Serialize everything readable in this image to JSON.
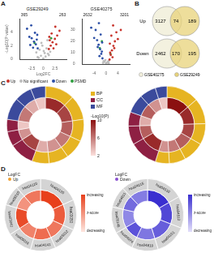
{
  "panel_labels": [
    "A",
    "B",
    "C",
    "D"
  ],
  "chart_data": [
    {
      "type": "scatter",
      "title": "GSE29249",
      "x_label": "Log2FC",
      "y_label": "-Log10(P value)",
      "xlim": [
        -5,
        5
      ],
      "xticks": [
        -2.5,
        0,
        2.5
      ],
      "ylim": [
        0,
        6
      ],
      "yticks": [
        0,
        2,
        4
      ],
      "grid": false,
      "count_labels": {
        "left": "365",
        "right": "263"
      },
      "series": [
        {
          "name": "Up",
          "color": "#c8342c",
          "x": [
            1.2,
            1.6,
            2,
            2.5,
            3,
            1.4,
            1.8,
            2.2,
            3.5,
            2.8,
            1.3,
            2.6
          ],
          "y": [
            1.5,
            2,
            2.5,
            3,
            3.5,
            2.8,
            3.8,
            1.6,
            4.2,
            2.2,
            3.3,
            4.8
          ]
        },
        {
          "name": "No significant",
          "color": "#bdbdbd",
          "x": [
            -1,
            -0.5,
            0,
            0.5,
            1,
            -1.5,
            1.5,
            -0.8,
            0.3,
            0.7,
            -0.2,
            1.2,
            -1.2,
            0.1,
            -0.4,
            0.9
          ],
          "y": [
            0.2,
            0.5,
            0.1,
            0.4,
            0.8,
            1,
            1.1,
            1.4,
            0.9,
            1.6,
            2,
            0.6,
            0.3,
            1.2,
            2.4,
            2.8
          ]
        },
        {
          "name": "Down",
          "color": "#2c4fa6",
          "x": [
            -1.2,
            -1.6,
            -2,
            -2.5,
            -3,
            -1.4,
            -1.8,
            -2.2,
            -3.5,
            -2.8,
            -1.3,
            -2.6
          ],
          "y": [
            1.6,
            2.2,
            2.6,
            3.1,
            3.3,
            2.9,
            3.9,
            1.7,
            4.5,
            2.1,
            3.6,
            5
          ]
        },
        {
          "name": "PSMD",
          "color": "#2e9e3e",
          "x": [
            1.7,
            -1.9
          ],
          "y": [
            3.1,
            2.4
          ]
        }
      ]
    },
    {
      "type": "scatter",
      "title": "GSE40275",
      "xlim": [
        -8,
        8
      ],
      "xticks": [
        -4,
        0,
        4
      ],
      "ylim": [
        0,
        40
      ],
      "yticks": [
        0,
        10,
        20,
        30
      ],
      "grid": false,
      "count_labels": {
        "left": "2632",
        "right": "3201"
      },
      "series": [
        {
          "name": "Up",
          "color": "#c8342c",
          "x": [
            1.2,
            1.6,
            2,
            2.5,
            3,
            1.4,
            1.8,
            2.2,
            3.5,
            2.8,
            4,
            5,
            1.3,
            2.4
          ],
          "y": [
            4,
            8,
            12,
            16,
            20,
            10,
            25,
            6,
            28,
            14,
            22,
            30,
            18,
            34
          ]
        },
        {
          "name": "No significant",
          "color": "#bdbdbd",
          "x": [
            -1,
            -0.5,
            0,
            0.5,
            1,
            -0.8,
            0.3,
            0.7,
            -0.2,
            0.9
          ],
          "y": [
            1,
            2,
            0.5,
            1.5,
            3,
            2.5,
            1.2,
            2.2,
            3.5,
            0.8
          ]
        },
        {
          "name": "Down",
          "color": "#2c4fa6",
          "x": [
            -1.2,
            -1.6,
            -2,
            -2.5,
            -3,
            -1.4,
            -1.8,
            -2.2,
            -3.5,
            -2.8,
            -4,
            -5,
            -1.3,
            -2.4
          ],
          "y": [
            5,
            9,
            13,
            17,
            21,
            11,
            26,
            7,
            30,
            15,
            23,
            32,
            19,
            36
          ]
        },
        {
          "name": "PSMD",
          "color": "#2e9e3e",
          "x": [
            1.5,
            -2.1,
            -1.4
          ],
          "y": [
            9,
            14,
            20
          ]
        }
      ]
    }
  ],
  "venn": {
    "legend": [
      {
        "name": "GSE40275",
        "color": "#f2efdc"
      },
      {
        "name": "GSE29249",
        "color": "#e8d37a"
      }
    ],
    "sets": [
      {
        "title": "Up",
        "left": 3127,
        "both": 74,
        "right": 189
      },
      {
        "title": "Down",
        "left": 2462,
        "both": 170,
        "right": 195
      }
    ]
  },
  "go_circles": {
    "ontology_colors": {
      "BP": "#e6b422",
      "CC": "#8e2043",
      "MF": "#3b4a9c"
    },
    "color_scale": {
      "label": "-Log10(P)",
      "range": [
        2,
        10
      ],
      "ticks": [
        2,
        6,
        10
      ],
      "colors": [
        "#fbe0dc",
        "#8b1010"
      ]
    },
    "plots": [
      {
        "type": "doughnut",
        "ontology": [
          "BP",
          "BP",
          "BP",
          "BP",
          "BP",
          "BP",
          "CC",
          "CC",
          "CC",
          "MF",
          "MF",
          "MF"
        ],
        "values": [
          12,
          10,
          9,
          8,
          8,
          7,
          10,
          6,
          5,
          9,
          7,
          6
        ],
        "neglog10p": [
          9,
          8,
          7,
          6,
          5,
          4,
          8,
          5,
          3,
          6,
          4,
          3
        ]
      },
      {
        "type": "doughnut",
        "ontology": [
          "BP",
          "BP",
          "BP",
          "BP",
          "BP",
          "BP",
          "CC",
          "CC",
          "CC",
          "MF",
          "MF",
          "MF"
        ],
        "values": [
          14,
          11,
          9,
          9,
          7,
          6,
          12,
          8,
          6,
          8,
          7,
          5
        ],
        "neglog10p": [
          10,
          9,
          8,
          7,
          6,
          5,
          9,
          7,
          4,
          7,
          5,
          3
        ]
      }
    ]
  },
  "kegg_circles": [
    {
      "type": "doughnut",
      "legend_title": "LogFC",
      "legend_label": "Up",
      "legend_color": "#f0a030",
      "terms": [
        "hsa04120",
        "hsa03050",
        "hsa05012",
        "hsa04141",
        "hsa05016",
        "hsa03040",
        "hsa05010",
        "hsa04110"
      ],
      "values": [
        8,
        6,
        5,
        5,
        5,
        6,
        4,
        5
      ],
      "zscore": [
        3,
        2.5,
        2,
        2.2,
        1.8,
        2.8,
        1.5,
        2
      ],
      "color_scale": {
        "labels": [
          "increasing",
          "z-score",
          "decreasing"
        ],
        "colors": [
          "#e8401c",
          "#fde6df"
        ]
      }
    },
    {
      "type": "doughnut",
      "legend_title": "LogFC",
      "legend_label": "Down",
      "legend_color": "#8a4fd0",
      "terms": [
        "hsa04510",
        "hsa04512",
        "hsa04151",
        "hsa04810",
        "hsa04974",
        "hsa05146",
        "hsa04611",
        "hsa04015"
      ],
      "values": [
        7,
        6,
        6,
        5,
        4,
        5,
        4,
        5
      ],
      "zscore": [
        -3,
        -2.6,
        -2.2,
        -1.8,
        -2.4,
        -1.5,
        -2,
        -1.7
      ],
      "color_scale": {
        "labels": [
          "increasing",
          "z-score",
          "decreasing"
        ],
        "colors": [
          "#3a2fd0",
          "#e4e0fb"
        ]
      }
    }
  ]
}
